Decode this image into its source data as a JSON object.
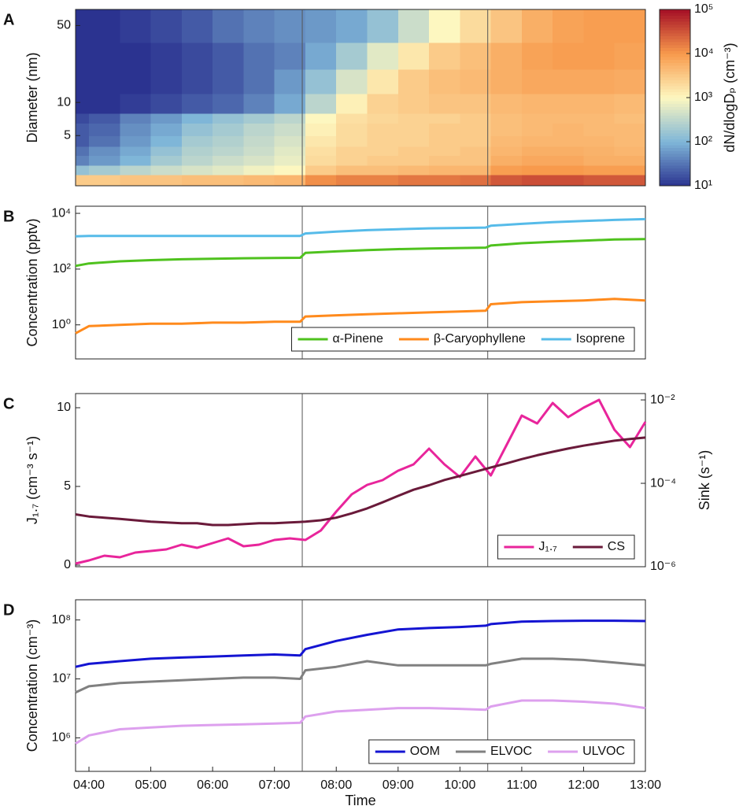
{
  "chart_data": [
    {
      "type": "heatmap",
      "panel": "A",
      "ylabel": "Diameter (nm)",
      "ylog": true,
      "xlim": [
        "03:47",
        "13:00"
      ],
      "ylim": [
        1.75,
        70
      ],
      "yticks": [
        5,
        10,
        50
      ],
      "vlines": [
        "07:27",
        "10:27"
      ],
      "xbins": [
        "03:47",
        "04:00",
        "04:30",
        "05:00",
        "05:30",
        "06:00",
        "06:30",
        "07:00",
        "07:30",
        "08:00",
        "08:30",
        "09:00",
        "09:30",
        "10:00",
        "10:30",
        "11:00",
        "11:30",
        "12:00",
        "12:30",
        "13:00"
      ],
      "ybins": [
        1.75,
        2.2,
        2.7,
        3.3,
        4,
        5,
        6.5,
        8,
        12,
        20,
        35,
        70
      ],
      "values": [
        [
          3000,
          3000,
          3500,
          3500,
          4000,
          4000,
          4500,
          5000,
          12000,
          15000,
          15000,
          18000,
          18000,
          20000,
          30000,
          35000,
          35000,
          30000,
          30000
        ],
        [
          150,
          200,
          300,
          400,
          500,
          600,
          800,
          1000,
          3000,
          4000,
          4000,
          4500,
          5000,
          5000,
          9000,
          10000,
          10000,
          9000,
          9000
        ],
        [
          40,
          60,
          100,
          200,
          300,
          400,
          500,
          700,
          2000,
          2500,
          3000,
          3000,
          3500,
          3500,
          6000,
          7000,
          7000,
          6000,
          6000
        ],
        [
          30,
          50,
          80,
          150,
          250,
          300,
          400,
          600,
          1800,
          2500,
          2500,
          3000,
          3000,
          3500,
          5000,
          6000,
          6000,
          5500,
          5000
        ],
        [
          20,
          30,
          60,
          100,
          200,
          250,
          350,
          500,
          1500,
          2000,
          2500,
          2500,
          3000,
          3000,
          4500,
          5000,
          5000,
          5000,
          4500
        ],
        [
          20,
          25,
          50,
          80,
          150,
          200,
          300,
          400,
          1200,
          2000,
          2500,
          2500,
          3000,
          3000,
          4000,
          4500,
          5000,
          4500,
          4500
        ],
        [
          15,
          20,
          40,
          60,
          100,
          150,
          200,
          300,
          1000,
          1800,
          2200,
          2500,
          2500,
          3000,
          4000,
          4500,
          4500,
          4500,
          4000
        ],
        [
          10,
          10,
          12,
          15,
          20,
          25,
          40,
          80,
          300,
          1200,
          2500,
          3000,
          3500,
          3500,
          4500,
          5000,
          5000,
          5000,
          4500
        ],
        [
          10,
          10,
          10,
          12,
          15,
          20,
          30,
          60,
          150,
          500,
          1500,
          3000,
          4000,
          4500,
          6000,
          7000,
          7000,
          7000,
          6500
        ],
        [
          10,
          10,
          10,
          12,
          15,
          20,
          30,
          40,
          80,
          200,
          600,
          1500,
          3000,
          4000,
          6000,
          8000,
          9000,
          9000,
          8000
        ],
        [
          10,
          10,
          12,
          15,
          20,
          30,
          40,
          50,
          60,
          80,
          150,
          400,
          1000,
          2000,
          3500,
          6000,
          8000,
          9000,
          9000
        ]
      ],
      "colorbar": {
        "label": "dN/dlogDₚ (cm⁻³)",
        "lim": [
          10,
          100000
        ],
        "ticks": [
          {
            "value": 10,
            "label": "10¹"
          },
          {
            "value": 100,
            "label": "10²"
          },
          {
            "value": 1000,
            "label": "10³"
          },
          {
            "value": 10000,
            "label": "10⁴"
          },
          {
            "value": 100000,
            "label": "10⁵"
          }
        ],
        "colors": [
          "#2b3390",
          "#7fb6d8",
          "#fdf7c0",
          "#f89a4c",
          "#a50f26"
        ]
      }
    },
    {
      "type": "line",
      "panel": "B",
      "ylabel": "Concentration (pptv)",
      "ylog": true,
      "xlim": [
        "03:47",
        "13:00"
      ],
      "ylim": [
        0.06,
        18000
      ],
      "yticks": [
        {
          "value": 1,
          "label": "10⁰"
        },
        {
          "value": 100,
          "label": "10²"
        },
        {
          "value": 10000,
          "label": "10⁴"
        }
      ],
      "vlines": [
        "07:27",
        "10:27"
      ],
      "legend": "lower right",
      "x": [
        "03:47",
        "04:00",
        "04:30",
        "05:00",
        "05:30",
        "06:00",
        "06:30",
        "07:00",
        "07:25",
        "07:30",
        "08:00",
        "08:30",
        "09:00",
        "09:30",
        "10:00",
        "10:25",
        "10:30",
        "11:00",
        "11:30",
        "12:00",
        "12:30",
        "13:00"
      ],
      "series": [
        {
          "name": "α-Pinene",
          "color": "#4fc21e",
          "values": [
            130,
            160,
            190,
            210,
            225,
            235,
            245,
            250,
            255,
            380,
            430,
            480,
            520,
            550,
            570,
            590,
            700,
            850,
            950,
            1050,
            1150,
            1200
          ]
        },
        {
          "name": "β-Caryophyllene",
          "color": "#ff8a1c",
          "values": [
            0.5,
            0.9,
            1,
            1.1,
            1.1,
            1.2,
            1.2,
            1.3,
            1.3,
            2,
            2.2,
            2.4,
            2.6,
            2.8,
            3,
            3.2,
            5.5,
            6.5,
            7,
            7.5,
            8.5,
            7.5
          ]
        },
        {
          "name": "Isoprene",
          "color": "#56bbe9",
          "values": [
            1500,
            1550,
            1550,
            1550,
            1550,
            1550,
            1550,
            1550,
            1550,
            1900,
            2200,
            2500,
            2700,
            2900,
            3000,
            3100,
            3600,
            4200,
            4800,
            5300,
            5800,
            6200
          ]
        }
      ]
    },
    {
      "type": "line",
      "panel": "C",
      "ylabel": "J₁.₇ (cm⁻³ s⁻¹)",
      "y2label": "Sink (s⁻¹)",
      "xlim": [
        "03:47",
        "13:00"
      ],
      "ylim": [
        -0.1,
        10.9
      ],
      "yticks": [
        0,
        5,
        10
      ],
      "y2log": true,
      "y2lim": [
        1e-06,
        0.0142
      ],
      "y2ticks": [
        {
          "value": 0.01,
          "label": "10⁻²"
        },
        {
          "value": 0.0001,
          "label": "10⁻⁴"
        },
        {
          "value": 1e-06,
          "label": "10⁻⁶"
        }
      ],
      "vlines": [
        "07:27",
        "10:27"
      ],
      "legend": "lower right",
      "x": [
        "03:47",
        "04:00",
        "04:15",
        "04:30",
        "04:45",
        "05:00",
        "05:15",
        "05:30",
        "05:45",
        "06:00",
        "06:15",
        "06:30",
        "06:45",
        "07:00",
        "07:15",
        "07:30",
        "07:45",
        "08:00",
        "08:15",
        "08:30",
        "08:45",
        "09:00",
        "09:15",
        "09:30",
        "09:45",
        "10:00",
        "10:15",
        "10:30",
        "10:45",
        "11:00",
        "11:15",
        "11:30",
        "11:45",
        "12:00",
        "12:15",
        "12:30",
        "12:45",
        "13:00"
      ],
      "series": [
        {
          "name": "J₁.₇",
          "color": "#e8259b",
          "values": [
            0.1,
            0.3,
            0.6,
            0.5,
            0.8,
            0.9,
            1.0,
            1.3,
            1.1,
            1.4,
            1.7,
            1.2,
            1.3,
            1.6,
            1.7,
            1.6,
            2.2,
            3.4,
            4.5,
            5.1,
            5.4,
            6.0,
            6.4,
            7.4,
            6.4,
            5.6,
            6.9,
            5.7,
            7.6,
            9.5,
            9.0,
            10.3,
            9.4,
            10.0,
            10.5,
            8.6,
            7.5,
            9.1
          ]
        },
        {
          "name": "CS",
          "color": "#6a1a3a",
          "axis": "y2",
          "values": [
            1.8e-05,
            1.6e-05,
            1.5e-05,
            1.4e-05,
            1.3e-05,
            1.2e-05,
            1.15e-05,
            1.1e-05,
            1.1e-05,
            1e-05,
            1e-05,
            1.05e-05,
            1.1e-05,
            1.1e-05,
            1.15e-05,
            1.2e-05,
            1.3e-05,
            1.5e-05,
            1.9e-05,
            2.5e-05,
            3.5e-05,
            5e-05,
            7e-05,
            9e-05,
            0.00012,
            0.00015,
            0.00019,
            0.00024,
            0.0003,
            0.00038,
            0.00047,
            0.00057,
            0.00068,
            0.0008,
            0.00092,
            0.00105,
            0.00115,
            0.00125
          ]
        }
      ]
    },
    {
      "type": "line",
      "panel": "D",
      "ylabel": "Concentration (cm⁻³)",
      "xlabel": "Time",
      "ylog": true,
      "xlim": [
        "03:47",
        "13:00"
      ],
      "ylim": [
        270000,
        220000000
      ],
      "yticks": [
        {
          "value": 1000000,
          "label": "10⁶"
        },
        {
          "value": 10000000,
          "label": "10⁷"
        },
        {
          "value": 100000000,
          "label": "10⁸"
        }
      ],
      "xticks": [
        "04:00",
        "05:00",
        "06:00",
        "07:00",
        "08:00",
        "09:00",
        "10:00",
        "11:00",
        "12:00",
        "13:00"
      ],
      "vlines": [
        "07:27",
        "10:27"
      ],
      "legend": "lower right",
      "x": [
        "03:47",
        "04:00",
        "04:30",
        "05:00",
        "05:30",
        "06:00",
        "06:30",
        "07:00",
        "07:25",
        "07:30",
        "08:00",
        "08:30",
        "09:00",
        "09:30",
        "10:00",
        "10:25",
        "10:30",
        "11:00",
        "11:30",
        "12:00",
        "12:30",
        "13:00"
      ],
      "series": [
        {
          "name": "OOM",
          "color": "#1414d2",
          "values": [
            16000000.0,
            18000000.0,
            20000000.0,
            22000000.0,
            23000000.0,
            24000000.0,
            25000000.0,
            26000000.0,
            25000000.0,
            32000000.0,
            44000000.0,
            56000000.0,
            69000000.0,
            73000000.0,
            76000000.0,
            80000000.0,
            85000000.0,
            94000000.0,
            96000000.0,
            97000000.0,
            97000000.0,
            96000000.0
          ]
        },
        {
          "name": "ELVOC",
          "color": "#808080",
          "values": [
            5900000.0,
            7500000.0,
            8500000.0,
            9000000.0,
            9500000.0,
            10000000.0,
            10500000.0,
            10500000.0,
            10000000.0,
            14000000.0,
            16000000.0,
            20000000.0,
            17000000.0,
            17000000.0,
            17000000.0,
            17000000.0,
            18000000.0,
            22000000.0,
            22000000.0,
            21000000.0,
            19000000.0,
            17000000.0
          ]
        },
        {
          "name": "ULVOC",
          "color": "#dda0ee",
          "values": [
            800000.0,
            1100000.0,
            1400000.0,
            1500000.0,
            1600000.0,
            1650000.0,
            1700000.0,
            1750000.0,
            1800000.0,
            2300000.0,
            2800000.0,
            3000000.0,
            3200000.0,
            3200000.0,
            3100000.0,
            3000000.0,
            3400000.0,
            4300000.0,
            4300000.0,
            4100000.0,
            3800000.0,
            3200000.0
          ]
        }
      ]
    }
  ]
}
